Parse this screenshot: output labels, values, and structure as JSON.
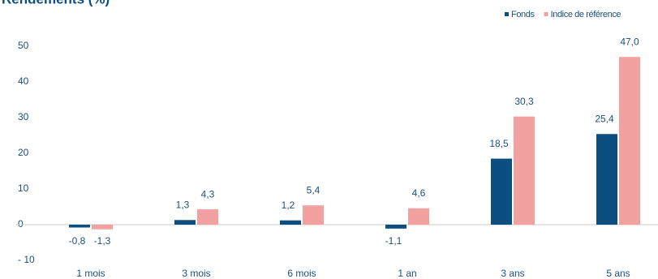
{
  "chart_data": {
    "type": "bar",
    "title": "Rendements (%)",
    "categories": [
      "1 mois",
      "3 mois",
      "6 mois",
      "1 an",
      "3 ans",
      "5 ans"
    ],
    "series": [
      {
        "name": "Fonds",
        "color": "#0b4f82",
        "values": [
          -0.8,
          1.3,
          1.2,
          -1.1,
          18.5,
          25.4
        ],
        "value_labels": [
          "-0,8",
          "1,3",
          "1,2",
          "-1,1",
          "18,5",
          "25,4"
        ]
      },
      {
        "name": "Indice de référence",
        "color": "#f2a0a0",
        "values": [
          -1.3,
          4.3,
          5.4,
          4.6,
          30.3,
          47.0
        ],
        "value_labels": [
          "-1,3",
          "4,3",
          "5,4",
          "4,6",
          "30,3",
          "47,0"
        ]
      }
    ],
    "ylim": [
      -10,
      50
    ],
    "yticks": [
      {
        "value": -10,
        "label": "- 10"
      },
      0,
      10,
      20,
      30,
      40,
      50
    ],
    "legend": "top-right"
  }
}
